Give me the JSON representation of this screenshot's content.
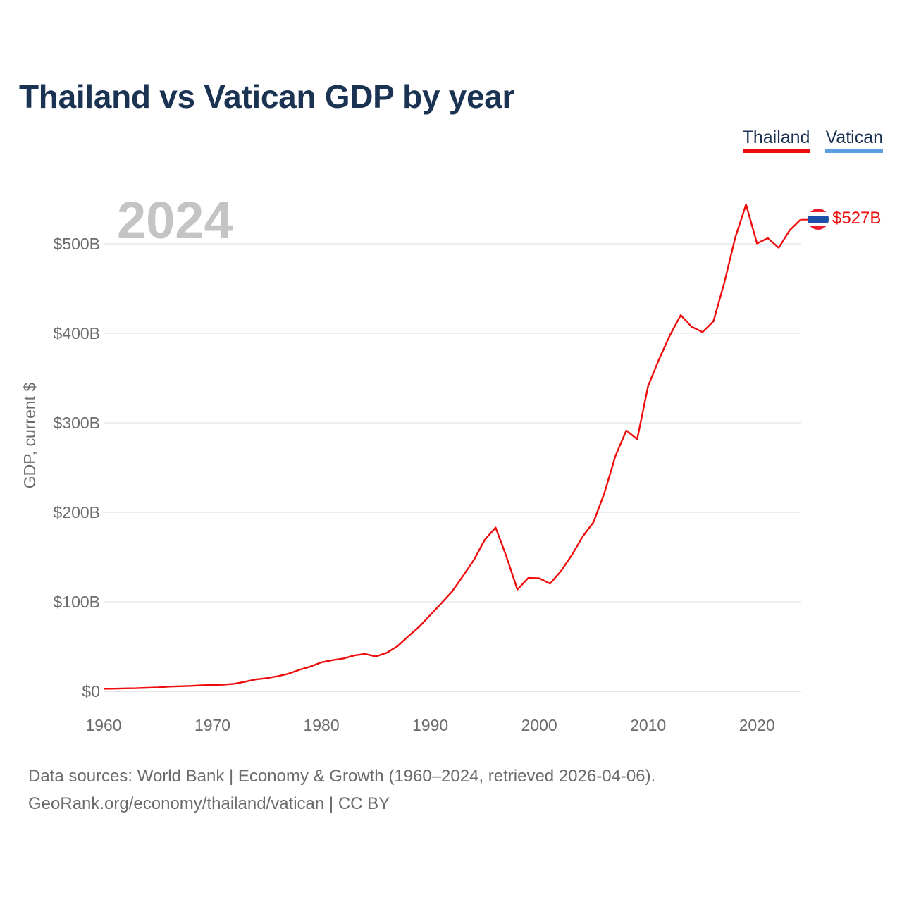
{
  "title": "Thailand vs Vatican GDP by year",
  "legend": [
    {
      "label": "Thailand",
      "color": "#ee0b0b"
    },
    {
      "label": "Vatican",
      "color": "#5aa0e0"
    }
  ],
  "year_label": "2024",
  "end_label": "$527B",
  "source_line1": "Data sources: World Bank | Economy & Growth (1960–2024, retrieved 2026-04-06).",
  "source_line2": "GeoRank.org/economy/thailand/vatican | CC BY",
  "flag_icon": "thailand-flag-icon",
  "colors": {
    "thailand": "#ee0b0b",
    "vatican": "#5aa0e0",
    "grid": "#e4e4e4",
    "tick": "#6b6b6b",
    "year": "#c4c4c4"
  },
  "chart_data": {
    "type": "line",
    "title": "Thailand vs Vatican GDP by year",
    "xlabel": "",
    "ylabel": "GDP, current $",
    "xlim": [
      1960,
      2024
    ],
    "ylim": [
      0,
      500
    ],
    "unit": "billion USD",
    "x_ticks": [
      1960,
      1970,
      1980,
      1990,
      2000,
      2010,
      2020
    ],
    "y_ticks": [
      {
        "value": 0,
        "label": "$0"
      },
      {
        "value": 100,
        "label": "$100B"
      },
      {
        "value": 200,
        "label": "$200B"
      },
      {
        "value": 300,
        "label": "$300B"
      },
      {
        "value": 400,
        "label": "$400B"
      },
      {
        "value": 500,
        "label": "$500B"
      }
    ],
    "series": [
      {
        "name": "Thailand",
        "color": "#ee0b0b",
        "x": [
          1960,
          1961,
          1962,
          1963,
          1964,
          1965,
          1966,
          1967,
          1968,
          1969,
          1970,
          1971,
          1972,
          1973,
          1974,
          1975,
          1976,
          1977,
          1978,
          1979,
          1980,
          1981,
          1982,
          1983,
          1984,
          1985,
          1986,
          1987,
          1988,
          1989,
          1990,
          1991,
          1992,
          1993,
          1994,
          1995,
          1996,
          1997,
          1998,
          1999,
          2000,
          2001,
          2002,
          2003,
          2004,
          2005,
          2006,
          2007,
          2008,
          2009,
          2010,
          2011,
          2012,
          2013,
          2014,
          2015,
          2016,
          2017,
          2018,
          2019,
          2020,
          2021,
          2022,
          2023,
          2024
        ],
        "values": [
          2.8,
          3.0,
          3.3,
          3.5,
          3.9,
          4.4,
          5.3,
          5.7,
          6.1,
          6.7,
          7.1,
          7.4,
          8.4,
          10.8,
          13.3,
          14.7,
          16.9,
          19.8,
          24.1,
          27.7,
          32.4,
          34.8,
          36.6,
          40.0,
          41.8,
          38.9,
          43.1,
          50.5,
          61.7,
          72.3,
          85.3,
          98.2,
          111.5,
          128.9,
          146.7,
          169.3,
          183.0,
          150.2,
          113.7,
          126.7,
          126.4,
          120.3,
          134.3,
          152.3,
          172.9,
          189.3,
          221.8,
          262.9,
          291.4,
          281.7,
          341.1,
          370.8,
          397.6,
          420.3,
          407.3,
          401.3,
          413.4,
          456.4,
          506.8,
          544.0,
          500.5,
          506.3,
          495.6,
          515.0,
          527.0
        ]
      },
      {
        "name": "Vatican",
        "color": "#5aa0e0",
        "x": [],
        "values": []
      }
    ]
  }
}
